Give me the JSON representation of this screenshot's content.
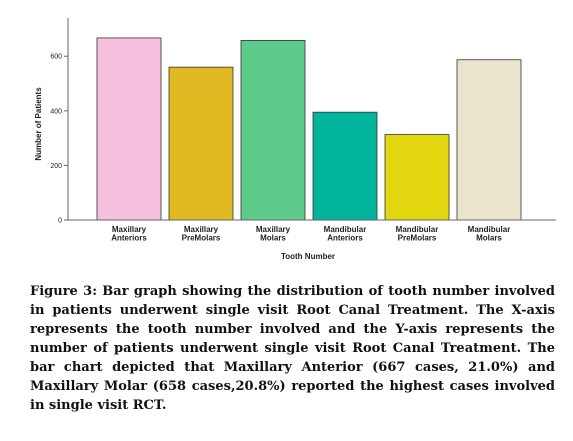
{
  "chart_data": {
    "type": "bar",
    "categories": [
      [
        "Maxillary",
        "Anteriors"
      ],
      [
        "Maxillary",
        "PreMolars"
      ],
      [
        "Maxillary",
        "Molars"
      ],
      [
        "Mandibular",
        "Anteriors"
      ],
      [
        "Mandibular",
        "PreMolars"
      ],
      [
        "Mandibular",
        "Molars"
      ]
    ],
    "values": [
      667,
      560,
      658,
      395,
      313,
      587
    ],
    "colors": [
      "#f7bfde",
      "#e0b923",
      "#5ecb8a",
      "#00b39a",
      "#e2d60e",
      "#ebe4cc"
    ],
    "xlabel": "Tooth Number",
    "ylabel": "Number of Patients",
    "ylim": [
      0,
      740
    ],
    "yticks": [
      0,
      200,
      400,
      600
    ],
    "grid": false
  },
  "caption": "Figure 3: Bar graph showing the distribution of tooth number involved in patients underwent single visit Root Canal Treatment. The X-axis represents the tooth number involved and the Y-axis represents the number of patients underwent single visit Root Canal Treatment. The bar chart depicted that Maxillary Anterior (667 cases, 21.0%) and Maxillary Molar (658 cases,20.8%) reported the highest cases involved in single visit RCT."
}
